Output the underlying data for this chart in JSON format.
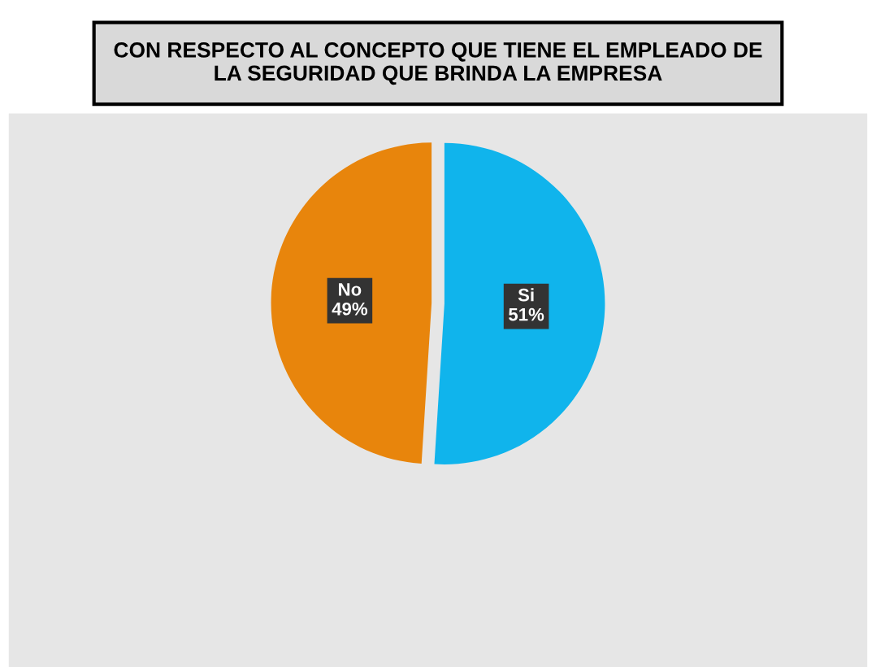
{
  "chart_data": {
    "type": "pie",
    "title": "CON RESPECTO AL CONCEPTO QUE TIENE EL EMPLEADO DE\nLA SEGURIDAD QUE BRINDA LA EMPRESA",
    "categories": [
      "Si",
      "No"
    ],
    "values": [
      51,
      49
    ],
    "value_labels": [
      "51%",
      "49%"
    ],
    "colors": [
      "#10b4ec",
      "#e8850c"
    ],
    "data_labels": true
  }
}
